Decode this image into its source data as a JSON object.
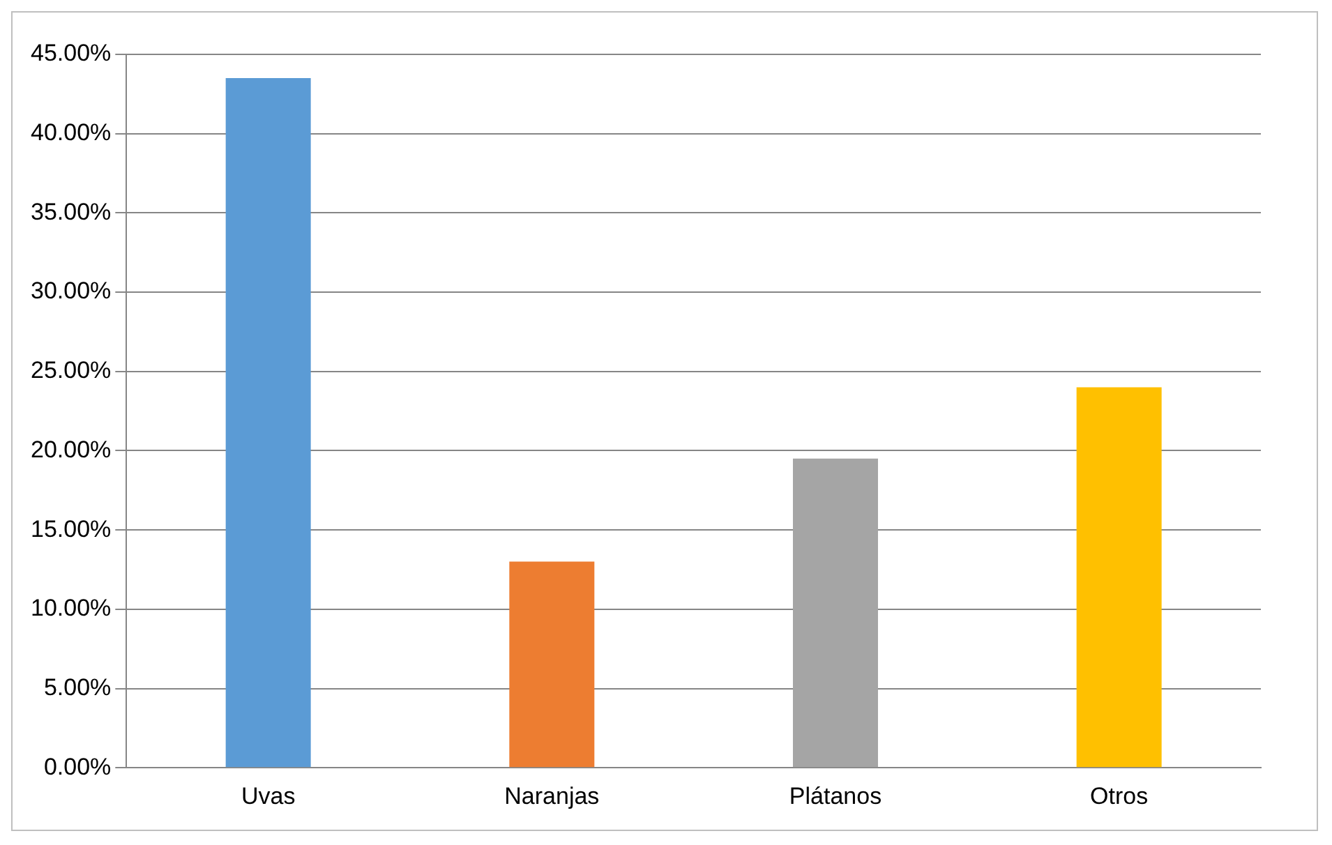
{
  "chart_data": {
    "type": "bar",
    "categories": [
      "Uvas",
      "Naranjas",
      "Plátanos",
      "Otros"
    ],
    "values": [
      43.5,
      13,
      19.5,
      24
    ],
    "colors": [
      "#5b9bd5",
      "#ed7d31",
      "#a5a5a5",
      "#ffc000"
    ],
    "ylim": [
      0,
      45
    ],
    "yticks": [
      {
        "value": 0,
        "label": "0.00%"
      },
      {
        "value": 5,
        "label": "5.00%"
      },
      {
        "value": 10,
        "label": "10.00%"
      },
      {
        "value": 15,
        "label": "15.00%"
      },
      {
        "value": 20,
        "label": "20.00%"
      },
      {
        "value": 25,
        "label": "25.00%"
      },
      {
        "value": 30,
        "label": "30.00%"
      },
      {
        "value": 35,
        "label": "35.00%"
      },
      {
        "value": 40,
        "label": "40.00%"
      },
      {
        "value": 45,
        "label": "45.00%"
      }
    ],
    "grid": "y"
  }
}
